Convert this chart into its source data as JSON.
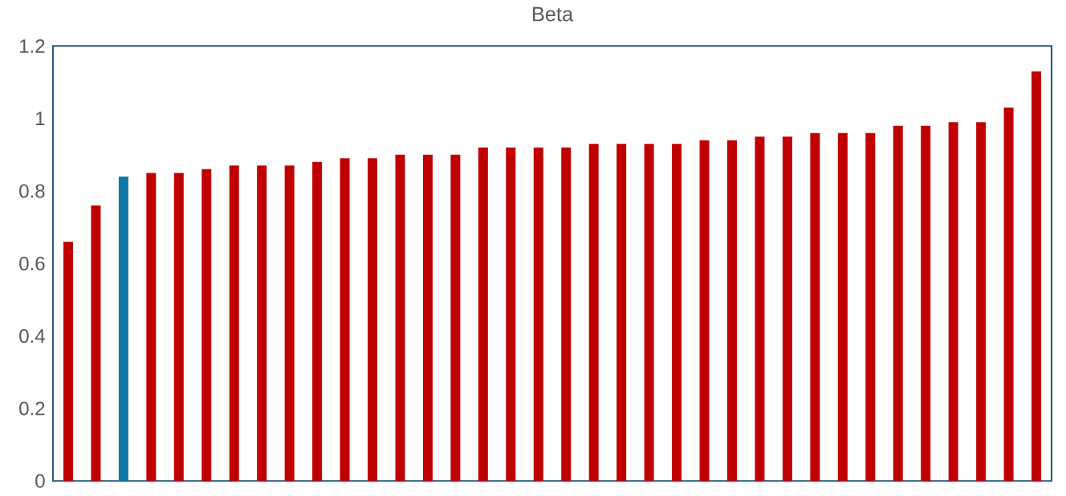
{
  "chart_data": {
    "type": "bar",
    "title": "Beta",
    "categories": [
      null,
      null,
      null,
      null,
      null,
      null,
      null,
      null,
      null,
      null,
      null,
      null,
      null,
      null,
      null,
      null,
      null,
      null,
      null,
      null,
      null,
      null,
      null,
      null,
      null,
      null,
      null,
      null,
      null,
      null,
      null,
      null,
      null,
      null,
      null,
      null
    ],
    "values": [
      0.66,
      0.76,
      0.84,
      0.85,
      0.85,
      0.86,
      0.87,
      0.87,
      0.87,
      0.88,
      0.89,
      0.89,
      0.9,
      0.9,
      0.9,
      0.92,
      0.92,
      0.92,
      0.92,
      0.93,
      0.93,
      0.93,
      0.93,
      0.94,
      0.94,
      0.95,
      0.95,
      0.96,
      0.96,
      0.96,
      0.98,
      0.98,
      0.99,
      0.99,
      1.03,
      1.13
    ],
    "colors": [
      "#c00000",
      "#c00000",
      "#0e77a3",
      "#c00000",
      "#c00000",
      "#c00000",
      "#c00000",
      "#c00000",
      "#c00000",
      "#c00000",
      "#c00000",
      "#c00000",
      "#c00000",
      "#c00000",
      "#c00000",
      "#c00000",
      "#c00000",
      "#c00000",
      "#c00000",
      "#c00000",
      "#c00000",
      "#c00000",
      "#c00000",
      "#c00000",
      "#c00000",
      "#c00000",
      "#c00000",
      "#c00000",
      "#c00000",
      "#c00000",
      "#c00000",
      "#c00000",
      "#c00000",
      "#c00000",
      "#c00000",
      "#c00000"
    ],
    "ylim": [
      0,
      1.2
    ],
    "yticks": [
      0,
      0.2,
      0.4,
      0.6,
      0.8,
      1,
      1.2
    ],
    "grid": false
  }
}
